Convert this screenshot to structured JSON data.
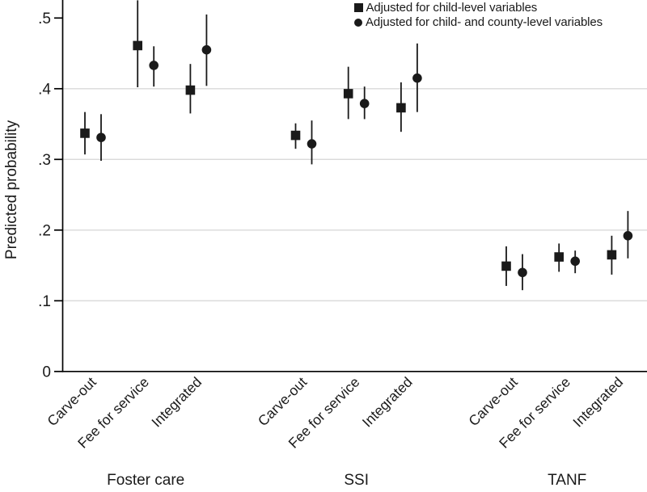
{
  "colors": {
    "marker": "#1a1a1a",
    "error_bar": "#1a1a1a",
    "grid": "#d9d9d9",
    "axis": "#000000",
    "text": "#1a1a1a",
    "background": "#ffffff"
  },
  "chart_data": {
    "type": "scatter",
    "title": "",
    "xlabel": "",
    "ylabel": "Predicted probability",
    "ylim": [
      0,
      0.525
    ],
    "grid": "horizontal",
    "legend_position": "top-right",
    "yticks": [
      {
        "value": 0.5,
        "label": ".5"
      },
      {
        "value": 0.4,
        "label": ".4"
      },
      {
        "value": 0.3,
        "label": ".3"
      },
      {
        "value": 0.2,
        "label": ".2"
      },
      {
        "value": 0.1,
        "label": ".1"
      },
      {
        "value": 0,
        "label": "0"
      }
    ],
    "gridline_values": [
      0.4,
      0.3,
      0.2,
      0.1
    ],
    "legend": [
      {
        "marker": "square",
        "label": "Adjusted for child-level variables"
      },
      {
        "marker": "circle",
        "label": "Adjusted for child- and county-level variables"
      }
    ],
    "groups": [
      {
        "label": "Foster care",
        "categories": [
          "Carve-out",
          "Fee for service",
          "Integrated"
        ],
        "series": [
          {
            "name": "Adjusted for child-level variables",
            "marker": "square",
            "points": [
              {
                "category": "Carve-out",
                "value": 0.337,
                "ci_low": 0.307,
                "ci_high": 0.367
              },
              {
                "category": "Fee for service",
                "value": 0.461,
                "ci_low": 0.402,
                "ci_high": 0.525,
                "ci_high_clipped": true
              },
              {
                "category": "Integrated",
                "value": 0.398,
                "ci_low": 0.365,
                "ci_high": 0.435
              }
            ]
          },
          {
            "name": "Adjusted for child- and county-level variables",
            "marker": "circle",
            "points": [
              {
                "category": "Carve-out",
                "value": 0.331,
                "ci_low": 0.298,
                "ci_high": 0.364
              },
              {
                "category": "Fee for service",
                "value": 0.433,
                "ci_low": 0.403,
                "ci_high": 0.46
              },
              {
                "category": "Integrated",
                "value": 0.455,
                "ci_low": 0.404,
                "ci_high": 0.505
              }
            ]
          }
        ]
      },
      {
        "label": "SSI",
        "categories": [
          "Carve-out",
          "Fee for service",
          "Integrated"
        ],
        "series": [
          {
            "name": "Adjusted for child-level variables",
            "marker": "square",
            "points": [
              {
                "category": "Carve-out",
                "value": 0.334,
                "ci_low": 0.315,
                "ci_high": 0.351
              },
              {
                "category": "Fee for service",
                "value": 0.393,
                "ci_low": 0.357,
                "ci_high": 0.431
              },
              {
                "category": "Integrated",
                "value": 0.373,
                "ci_low": 0.339,
                "ci_high": 0.409
              }
            ]
          },
          {
            "name": "Adjusted for child- and county-level variables",
            "marker": "circle",
            "points": [
              {
                "category": "Carve-out",
                "value": 0.322,
                "ci_low": 0.293,
                "ci_high": 0.355
              },
              {
                "category": "Fee for service",
                "value": 0.379,
                "ci_low": 0.357,
                "ci_high": 0.403
              },
              {
                "category": "Integrated",
                "value": 0.415,
                "ci_low": 0.367,
                "ci_high": 0.464
              }
            ]
          }
        ]
      },
      {
        "label": "TANF",
        "categories": [
          "Carve-out",
          "Fee for service",
          "Integrated"
        ],
        "series": [
          {
            "name": "Adjusted for child-level variables",
            "marker": "square",
            "points": [
              {
                "category": "Carve-out",
                "value": 0.149,
                "ci_low": 0.121,
                "ci_high": 0.177
              },
              {
                "category": "Fee for service",
                "value": 0.162,
                "ci_low": 0.141,
                "ci_high": 0.181
              },
              {
                "category": "Integrated",
                "value": 0.165,
                "ci_low": 0.137,
                "ci_high": 0.192
              }
            ]
          },
          {
            "name": "Adjusted for child- and county-level variables",
            "marker": "circle",
            "points": [
              {
                "category": "Carve-out",
                "value": 0.14,
                "ci_low": 0.115,
                "ci_high": 0.166
              },
              {
                "category": "Fee for service",
                "value": 0.156,
                "ci_low": 0.139,
                "ci_high": 0.171
              },
              {
                "category": "Integrated",
                "value": 0.192,
                "ci_low": 0.16,
                "ci_high": 0.227
              }
            ]
          }
        ]
      }
    ]
  }
}
